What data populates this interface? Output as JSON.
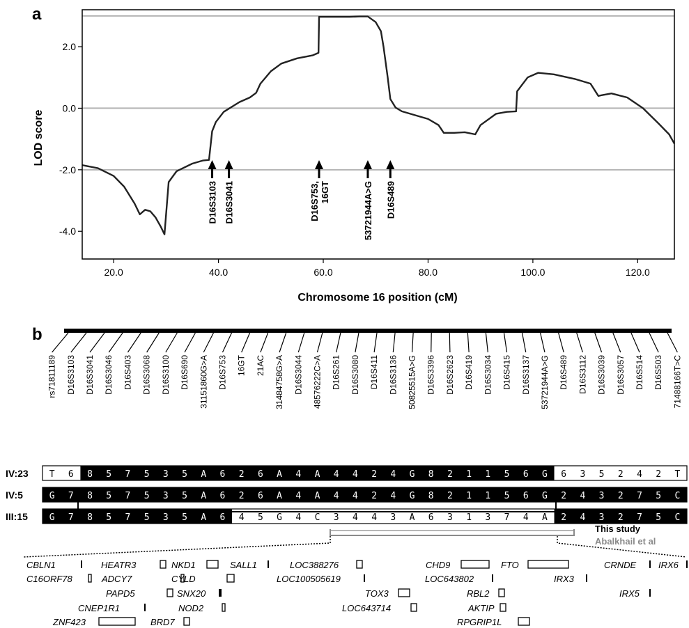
{
  "panel_a": {
    "label": "a"
  },
  "panel_b": {
    "label": "b"
  },
  "chart_data": {
    "type": "line",
    "title": "",
    "xlabel": "Chromosome 16 position (cM)",
    "ylabel": "LOD score",
    "xlim": [
      14,
      127
    ],
    "ylim": [
      -4.9,
      3.2
    ],
    "xticks": [
      20,
      40,
      60,
      80,
      100,
      120
    ],
    "xtick_labels": [
      "20.0",
      "40.0",
      "60.0",
      "80.0",
      "100.0",
      "120.0"
    ],
    "yticks": [
      2,
      0,
      -2,
      -4
    ],
    "ytick_labels": [
      "2.0",
      "0.0",
      "-2.0",
      "-4.0"
    ],
    "reference_lines": [
      3.0,
      0.0,
      -2.0
    ],
    "series": [
      {
        "x": [
          14.0,
          17,
          20,
          22,
          24,
          25,
          26,
          27,
          28,
          29,
          29.7,
          30.5,
          32,
          35,
          37,
          38.2,
          38.8,
          39.5,
          41,
          44,
          46,
          47.2,
          48,
          50,
          52,
          55,
          58,
          59.1,
          59.2,
          62,
          65,
          67,
          68.5,
          70,
          71,
          71.5,
          72.3,
          72.8,
          73.8,
          75,
          78,
          80,
          82,
          83,
          85,
          87,
          89,
          90,
          93,
          95,
          96.8,
          97,
          99,
          101,
          104,
          108,
          111,
          112.5,
          113,
          115,
          118,
          121,
          124,
          126,
          127
        ],
        "y": [
          -1.85,
          -1.95,
          -2.2,
          -2.55,
          -3.1,
          -3.45,
          -3.3,
          -3.35,
          -3.55,
          -3.85,
          -4.1,
          -2.4,
          -2.05,
          -1.8,
          -1.7,
          -1.68,
          -0.75,
          -0.45,
          -0.12,
          0.2,
          0.35,
          0.5,
          0.8,
          1.2,
          1.45,
          1.62,
          1.72,
          1.8,
          2.97,
          2.97,
          2.97,
          2.98,
          2.98,
          2.8,
          2.5,
          2.0,
          1.0,
          0.3,
          0.02,
          -0.1,
          -0.25,
          -0.35,
          -0.55,
          -0.8,
          -0.8,
          -0.78,
          -0.85,
          -0.55,
          -0.18,
          -0.12,
          -0.1,
          0.55,
          1.0,
          1.15,
          1.1,
          0.95,
          0.8,
          0.4,
          0.42,
          0.48,
          0.35,
          0.0,
          -0.5,
          -0.85,
          -1.15
        ]
      }
    ],
    "marker_arrows": [
      {
        "label": "D16S3103",
        "x": 38.8
      },
      {
        "label": "D16S3041",
        "x": 42.0
      },
      {
        "label": "D16S753,\n16GT",
        "x": 59.2
      },
      {
        "label": "53721944A>G",
        "x": 68.5
      },
      {
        "label": "D16S489",
        "x": 72.8
      }
    ]
  },
  "haplotype": {
    "markers": [
      "rs71811189",
      "D16S3103",
      "D16S3041",
      "D16S3046",
      "D16S403",
      "D16S3068",
      "D16S3100",
      "D16S690",
      "31151860G>A",
      "D16S753",
      "16GT",
      "21AC",
      "31484758G>A",
      "D16S3044",
      "48576222C>A",
      "D16S261",
      "D16S3080",
      "D16S411",
      "D16S3136",
      "50825515A>G",
      "D16S3396",
      "D16S2623",
      "D16S419",
      "D16S3034",
      "D16S415",
      "D16S3137",
      "53721944A>G",
      "D16S489",
      "D16S3112",
      "D16S3039",
      "D16S3057",
      "D16S514",
      "D16S503",
      "71488166T>C"
    ],
    "rows": [
      {
        "id": "IV:23",
        "alleles": [
          "T",
          "6",
          "8",
          "5",
          "7",
          "5",
          "3",
          "5",
          "A",
          "6",
          "2",
          "6",
          "A",
          "4",
          "A",
          "4",
          "4",
          "2",
          "4",
          "G",
          "8",
          "2",
          "1",
          "1",
          "5",
          "6",
          "G",
          "6",
          "3",
          "5",
          "2",
          "4",
          "2",
          "T"
        ]
      },
      {
        "id": "IV:5",
        "alleles": [
          "G",
          "7",
          "8",
          "5",
          "7",
          "5",
          "3",
          "5",
          "A",
          "6",
          "2",
          "6",
          "A",
          "4",
          "A",
          "4",
          "4",
          "2",
          "4",
          "G",
          "8",
          "2",
          "1",
          "1",
          "5",
          "6",
          "G",
          "2",
          "4",
          "3",
          "2",
          "7",
          "5",
          "C"
        ]
      },
      {
        "id": "III:15",
        "alleles": [
          "G",
          "7",
          "8",
          "5",
          "7",
          "5",
          "3",
          "5",
          "A",
          "6",
          "4",
          "5",
          "G",
          "4",
          "C",
          "3",
          "4",
          "4",
          "3",
          "A",
          "6",
          "3",
          "1",
          "3",
          "7",
          "4",
          "A",
          "2",
          "4",
          "3",
          "2",
          "7",
          "5",
          "C"
        ]
      }
    ],
    "dark_ranges": [
      [
        2,
        26
      ],
      [
        0,
        33
      ],
      [
        0,
        9
      ]
    ],
    "study_label": "This study",
    "abalkhail_label": "Abalkhail et al"
  },
  "genes": [
    "CBLN1",
    "C16ORF78",
    "HEATR3",
    "ADCY7",
    "PAPD5",
    "CNEP1R1",
    "ZNF423",
    "NKD1",
    "CYLD",
    "SNX20",
    "NOD2",
    "BRD7",
    "SALL1",
    "LOC388276",
    "LOC100505619",
    "TOX3",
    "LOC643714",
    "CHD9",
    "LOC643802",
    "RBL2",
    "AKTIP",
    "RPGRIP1L",
    "FTO",
    "IRX3",
    "CRNDE",
    "IRX5",
    "IRX6"
  ],
  "colors": {
    "dark": "#000000",
    "reference": "#b4b4b4",
    "abalkhail": "#8a8a8a",
    "curve": "#222222"
  }
}
